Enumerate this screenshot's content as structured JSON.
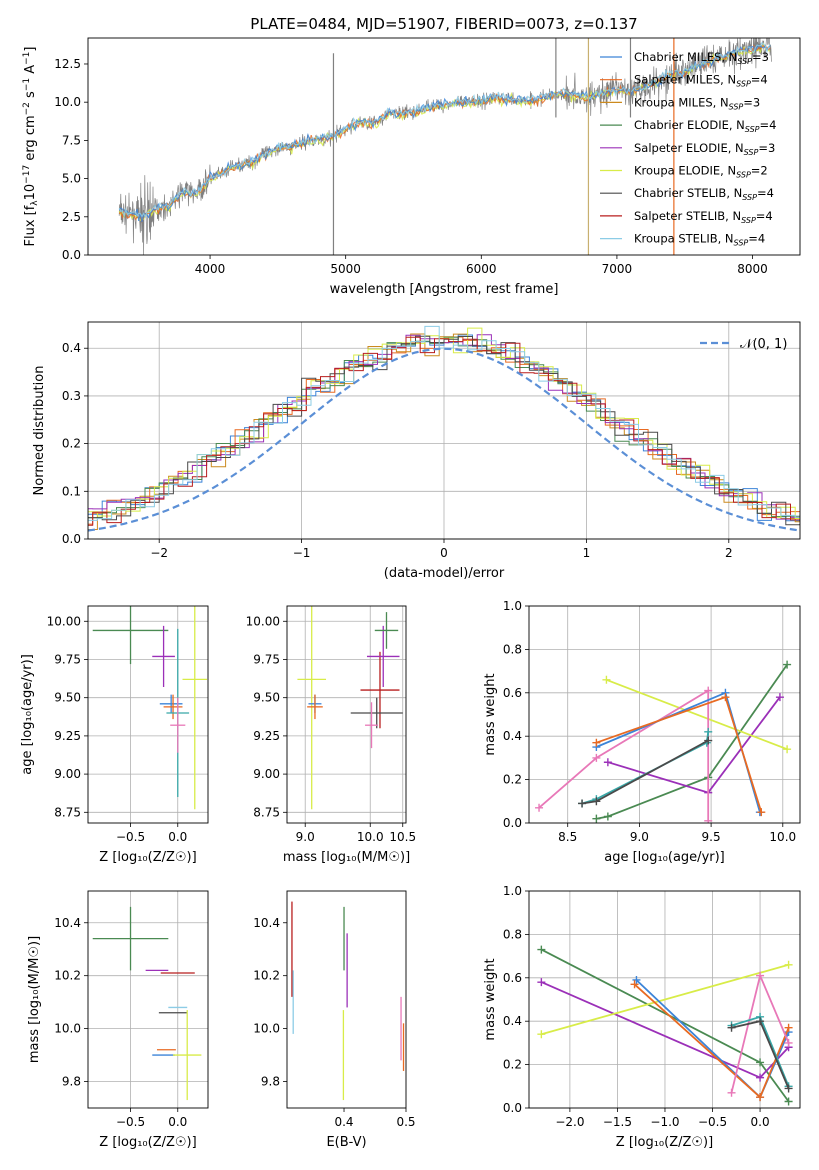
{
  "figure_title": "PLATE=0484, MJD=51907, FIBERID=0073, z=0.137",
  "colors": {
    "chabrier_miles": "#3c84d8",
    "salpeter_miles": "#e86a22",
    "kroupa_miles": "#cc8a1e",
    "chabrier_elodie": "#4a8a52",
    "salpeter_elodie": "#9b30b8",
    "kroupa_elodie": "#d8ec48",
    "chabrier_stelib": "#4a4a4a",
    "salpeter_stelib": "#b81e1e",
    "kroupa_stelib": "#8ccce6",
    "spectrum": "#808080",
    "pink": "#e878b8",
    "teal": "#38a8a8",
    "normal_curve": "#5b8fd6",
    "grid": "#b0b0b0"
  },
  "chart_data": [
    {
      "id": "spectrum",
      "type": "line",
      "title": "PLATE=0484, MJD=51907, FIBERID=0073, z=0.137",
      "xlabel": "wavelength [Angstrom, rest frame]",
      "ylabel": "Flux [f_λ10^-17 erg cm^-2 s^-1 A^-1]",
      "xlim": [
        3100,
        8350
      ],
      "ylim": [
        0,
        14.2
      ],
      "xticks": [
        4000,
        5000,
        6000,
        7000,
        8000
      ],
      "yticks": [
        0.0,
        2.5,
        5.0,
        7.5,
        10.0,
        12.5
      ],
      "grid": false,
      "legend_position": "top-right",
      "legend": [
        {
          "main": "Chabrier MILES, N",
          "sub": "SSP",
          "tail": "=3",
          "color": "#3c84d8"
        },
        {
          "main": "Salpeter MILES, N",
          "sub": "SSP",
          "tail": "=4",
          "color": "#e86a22"
        },
        {
          "main": "Kroupa MILES, N",
          "sub": "SSP",
          "tail": "=3",
          "color": "#cc8a1e"
        },
        {
          "main": "Chabrier ELODIE, N",
          "sub": "SSP",
          "tail": "=4",
          "color": "#4a8a52"
        },
        {
          "main": "Salpeter ELODIE, N",
          "sub": "SSP",
          "tail": "=3",
          "color": "#9b30b8"
        },
        {
          "main": "Kroupa ELODIE, N",
          "sub": "SSP",
          "tail": "=2",
          "color": "#d8ec48"
        },
        {
          "main": "Chabrier STELIB, N",
          "sub": "SSP",
          "tail": "=4",
          "color": "#4a4a4a"
        },
        {
          "main": "Salpeter STELIB, N",
          "sub": "SSP",
          "tail": "=4",
          "color": "#b81e1e"
        },
        {
          "main": "Kroupa STELIB, N",
          "sub": "SSP",
          "tail": "=4",
          "color": "#8ccce6"
        }
      ],
      "continuum": [
        [
          3330,
          2.8
        ],
        [
          3400,
          2.7
        ],
        [
          3500,
          2.5
        ],
        [
          3600,
          3.0
        ],
        [
          3700,
          3.2
        ],
        [
          3800,
          4.2
        ],
        [
          3900,
          4.0
        ],
        [
          4000,
          5.0
        ],
        [
          4100,
          5.4
        ],
        [
          4200,
          5.9
        ],
        [
          4300,
          6.0
        ],
        [
          4400,
          6.6
        ],
        [
          4500,
          7.0
        ],
        [
          4600,
          7.1
        ],
        [
          4700,
          7.4
        ],
        [
          4800,
          7.6
        ],
        [
          4900,
          7.7
        ],
        [
          5000,
          8.2
        ],
        [
          5100,
          8.7
        ],
        [
          5200,
          8.6
        ],
        [
          5300,
          9.2
        ],
        [
          5400,
          9.3
        ],
        [
          5500,
          9.3
        ],
        [
          5600,
          9.7
        ],
        [
          5700,
          9.8
        ],
        [
          5800,
          9.9
        ],
        [
          5900,
          10.0
        ],
        [
          6000,
          10.1
        ],
        [
          6100,
          10.3
        ],
        [
          6200,
          10.2
        ],
        [
          6300,
          10.1
        ],
        [
          6400,
          10.2
        ],
        [
          6500,
          10.4
        ],
        [
          6600,
          10.6
        ],
        [
          6700,
          10.4
        ],
        [
          6800,
          10.3
        ],
        [
          6900,
          10.6
        ],
        [
          7000,
          10.8
        ],
        [
          7100,
          10.7
        ],
        [
          7200,
          11.0
        ],
        [
          7300,
          11.4
        ],
        [
          7400,
          11.8
        ],
        [
          7500,
          12.0
        ],
        [
          7600,
          12.4
        ],
        [
          7700,
          12.8
        ],
        [
          7800,
          13.0
        ],
        [
          7900,
          13.3
        ],
        [
          8000,
          13.5
        ],
        [
          8100,
          13.6
        ]
      ],
      "spikes": [
        [
          4910,
          0.0,
          13.2
        ],
        [
          6790,
          0.0,
          14.2
        ],
        [
          7420,
          0.0,
          14.2
        ],
        [
          6550,
          9.0,
          14.2
        ],
        [
          7100,
          9.0,
          14.2
        ]
      ]
    },
    {
      "id": "residuals",
      "type": "line",
      "xlabel": "(data-model)/error",
      "ylabel": "Normed distribution",
      "xlim": [
        -2.5,
        2.5
      ],
      "ylim": [
        0,
        0.455
      ],
      "xticks": [
        -2,
        -1,
        0,
        1,
        2
      ],
      "yticks": [
        0.0,
        0.1,
        0.2,
        0.3,
        0.4
      ],
      "grid": true,
      "legend_position": "top-right",
      "legend_label": "𝒩(0, 1)"
    },
    {
      "id": "age_vs_Z",
      "type": "scatter",
      "xlabel": "Z [log₁₀(Z/Z☉)]",
      "ylabel": "age  [log₁₀(age/yr)]",
      "xlim": [
        -0.95,
        0.32
      ],
      "ylim": [
        8.68,
        10.1
      ],
      "xticks": [
        -0.5,
        0.0
      ],
      "yticks": [
        8.75,
        9.0,
        9.25,
        9.5,
        9.75,
        10.0
      ],
      "grid": true,
      "errorbars": [
        {
          "color": "#4a8a52",
          "x": -0.5,
          "xerr": 0.4,
          "y": 9.94,
          "yerr": 0.22
        },
        {
          "color": "#9b30b8",
          "x": -0.15,
          "xerr": 0.12,
          "y": 9.77,
          "yerr": 0.2
        },
        {
          "color": "#3c84d8",
          "x": -0.07,
          "xerr": 0.12,
          "y": 9.46,
          "yerr": 0.06
        },
        {
          "color": "#e86a22",
          "x": -0.05,
          "xerr": 0.1,
          "y": 9.44,
          "yerr": 0.08
        },
        {
          "color": "#38a8a8",
          "x": 0.0,
          "xerr": 0.12,
          "y": 9.4,
          "yerr": 0.55
        },
        {
          "color": "#e878b8",
          "x": 0.0,
          "xerr": 0.08,
          "y": 9.32,
          "yerr": 0.18
        },
        {
          "color": "#d8ec48",
          "x": 0.18,
          "xerr": 0.13,
          "y": 9.62,
          "yerr": 0.85
        }
      ]
    },
    {
      "id": "age_vs_mass",
      "type": "scatter",
      "xlabel": "mass [log₁₀(M/M☉)]",
      "xlim": [
        8.72,
        10.55
      ],
      "ylim": [
        8.68,
        10.1
      ],
      "xticks": [
        9.0,
        10.0,
        10.5
      ],
      "xticklabels": [
        "9.0",
        "10.0",
        "10.5"
      ],
      "yticks": [
        8.75,
        9.0,
        9.25,
        9.5,
        9.75,
        10.0
      ],
      "grid": true,
      "errorbars": [
        {
          "color": "#d8ec48",
          "x": 9.1,
          "xerr": 0.22,
          "y": 9.62,
          "yerr": 0.85
        },
        {
          "color": "#3c84d8",
          "x": 9.15,
          "xerr": 0.1,
          "y": 9.46,
          "yerr": 0.06
        },
        {
          "color": "#e86a22",
          "x": 9.15,
          "xerr": 0.12,
          "y": 9.44,
          "yerr": 0.08
        },
        {
          "color": "#b81e1e",
          "x": 10.15,
          "xerr": 0.3,
          "y": 9.55,
          "yerr": 0.25
        },
        {
          "color": "#9b30b8",
          "x": 10.2,
          "xerr": 0.25,
          "y": 9.77,
          "yerr": 0.2
        },
        {
          "color": "#4a8a52",
          "x": 10.25,
          "xerr": 0.18,
          "y": 9.94,
          "yerr": 0.12
        },
        {
          "color": "#4a4a4a",
          "x": 10.1,
          "xerr": 0.4,
          "y": 9.4,
          "yerr": 0.1
        },
        {
          "color": "#e878b8",
          "x": 10.02,
          "xerr": 0.1,
          "y": 9.32,
          "yerr": 0.15
        }
      ]
    },
    {
      "id": "weight_vs_age",
      "type": "line",
      "xlabel": "age  [log₁₀(age/yr)]",
      "ylabel": "mass weight",
      "xlim": [
        8.23,
        10.12
      ],
      "ylim": [
        0.0,
        1.0
      ],
      "xticks": [
        8.5,
        9.0,
        9.5,
        10.0
      ],
      "yticks": [
        0.0,
        0.2,
        0.4,
        0.6,
        0.8,
        1.0
      ],
      "grid": true,
      "series": [
        {
          "color": "#4a8a52",
          "x": [
            8.7,
            8.78,
            9.48,
            10.03
          ],
          "y": [
            0.02,
            0.03,
            0.21,
            0.73
          ]
        },
        {
          "color": "#9b30b8",
          "x": [
            8.78,
            9.48,
            9.98
          ],
          "y": [
            0.28,
            0.14,
            0.58
          ]
        },
        {
          "color": "#d8ec48",
          "x": [
            8.77,
            10.03
          ],
          "y": [
            0.66,
            0.34
          ]
        },
        {
          "color": "#e878b8",
          "x": [
            8.3,
            8.7,
            9.48,
            9.48
          ],
          "y": [
            0.07,
            0.3,
            0.61,
            0.01
          ]
        },
        {
          "color": "#3c84d8",
          "x": [
            8.7,
            9.6,
            9.84
          ],
          "y": [
            0.35,
            0.6,
            0.05
          ]
        },
        {
          "color": "#e86a22",
          "x": [
            8.7,
            9.6,
            9.85
          ],
          "y": [
            0.37,
            0.58,
            0.05
          ]
        },
        {
          "color": "#38a8a8",
          "x": [
            8.6,
            8.7,
            9.47,
            9.48
          ],
          "y": [
            0.09,
            0.11,
            0.37,
            0.42
          ]
        },
        {
          "color": "#4a4a4a",
          "x": [
            8.6,
            8.7,
            9.48
          ],
          "y": [
            0.09,
            0.1,
            0.38
          ]
        }
      ]
    },
    {
      "id": "mass_vs_Z",
      "type": "scatter",
      "xlabel": "Z [log₁₀(Z/Z☉)]",
      "ylabel": "mass [log₁₀(M/M☉)]",
      "xlim": [
        -0.95,
        0.32
      ],
      "ylim": [
        9.7,
        10.52
      ],
      "xticks": [
        -0.5,
        0.0
      ],
      "yticks": [
        9.8,
        10.0,
        10.2,
        10.4
      ],
      "grid": true,
      "errorbars": [
        {
          "color": "#4a8a52",
          "x": -0.5,
          "xerr": 0.4,
          "y": 10.34,
          "yerr": 0.12
        },
        {
          "color": "#9b30b8",
          "x": -0.22,
          "xerr": 0.12,
          "y": 10.22,
          "yerr": 0.0
        },
        {
          "color": "#b81e1e",
          "x": 0.0,
          "xerr": 0.18,
          "y": 10.21,
          "yerr": 0.0
        },
        {
          "color": "#8ccce6",
          "x": 0.0,
          "xerr": 0.1,
          "y": 10.08,
          "yerr": 0.0
        },
        {
          "color": "#4a4a4a",
          "x": -0.05,
          "xerr": 0.15,
          "y": 10.06,
          "yerr": 0.0
        },
        {
          "color": "#3c84d8",
          "x": -0.15,
          "xerr": 0.12,
          "y": 9.9,
          "yerr": 0.0
        },
        {
          "color": "#e86a22",
          "x": -0.12,
          "xerr": 0.1,
          "y": 9.92,
          "yerr": 0.0
        },
        {
          "color": "#d8ec48",
          "x": 0.1,
          "xerr": 0.15,
          "y": 9.9,
          "yerr": 0.17
        }
      ]
    },
    {
      "id": "mass_vs_ebv",
      "type": "scatter",
      "xlabel": "E(B-V)",
      "xlim": [
        0.308,
        0.5
      ],
      "ylim": [
        9.7,
        10.52
      ],
      "xticks": [
        0.4,
        0.5
      ],
      "yticks": [
        9.8,
        10.0,
        10.2,
        10.4
      ],
      "grid": false,
      "errorbars": [
        {
          "color": "#b81e1e",
          "x": 0.316,
          "xerr": 0.0,
          "y": 10.3,
          "yerr": 0.18
        },
        {
          "color": "#4a8a52",
          "x": 0.4,
          "xerr": 0.0,
          "y": 10.34,
          "yerr": 0.12
        },
        {
          "color": "#9b30b8",
          "x": 0.405,
          "xerr": 0.0,
          "y": 10.22,
          "yerr": 0.14
        },
        {
          "color": "#d8ec48",
          "x": 0.399,
          "xerr": 0.0,
          "y": 9.9,
          "yerr": 0.17
        },
        {
          "color": "#e878b8",
          "x": 0.492,
          "xerr": 0.0,
          "y": 10.0,
          "yerr": 0.12
        },
        {
          "color": "#e86a22",
          "x": 0.496,
          "xerr": 0.0,
          "y": 9.93,
          "yerr": 0.09
        },
        {
          "color": "#8ccce6",
          "x": 0.318,
          "xerr": 0.0,
          "y": 10.1,
          "yerr": 0.12
        }
      ]
    },
    {
      "id": "weight_vs_Z",
      "type": "line",
      "xlabel": "Z [log₁₀(Z/Z☉)]",
      "ylabel": "mass weight",
      "xlim": [
        -2.43,
        0.42
      ],
      "ylim": [
        0.0,
        1.0
      ],
      "xticks": [
        -2.0,
        -1.5,
        -1.0,
        -0.5,
        0.0
      ],
      "yticks": [
        0.0,
        0.2,
        0.4,
        0.6,
        0.8,
        1.0
      ],
      "grid": true,
      "series": [
        {
          "color": "#4a8a52",
          "x": [
            -2.3,
            0.0,
            0.3
          ],
          "y": [
            0.73,
            0.21,
            0.03
          ]
        },
        {
          "color": "#9b30b8",
          "x": [
            -2.3,
            0.0,
            0.3
          ],
          "y": [
            0.58,
            0.14,
            0.28
          ]
        },
        {
          "color": "#d8ec48",
          "x": [
            -2.3,
            0.3
          ],
          "y": [
            0.34,
            0.66
          ]
        },
        {
          "color": "#3c84d8",
          "x": [
            -1.3,
            0.0,
            0.3
          ],
          "y": [
            0.59,
            0.05,
            0.35
          ]
        },
        {
          "color": "#e86a22",
          "x": [
            -1.32,
            0.0,
            0.3
          ],
          "y": [
            0.57,
            0.05,
            0.37
          ]
        },
        {
          "color": "#e878b8",
          "x": [
            -0.3,
            0.0,
            0.3
          ],
          "y": [
            0.07,
            0.61,
            0.3
          ]
        },
        {
          "color": "#38a8a8",
          "x": [
            -0.3,
            0.0,
            0.3
          ],
          "y": [
            0.38,
            0.42,
            0.1
          ]
        },
        {
          "color": "#4a4a4a",
          "x": [
            -0.3,
            0.0,
            0.3
          ],
          "y": [
            0.37,
            0.4,
            0.09
          ]
        }
      ]
    }
  ]
}
